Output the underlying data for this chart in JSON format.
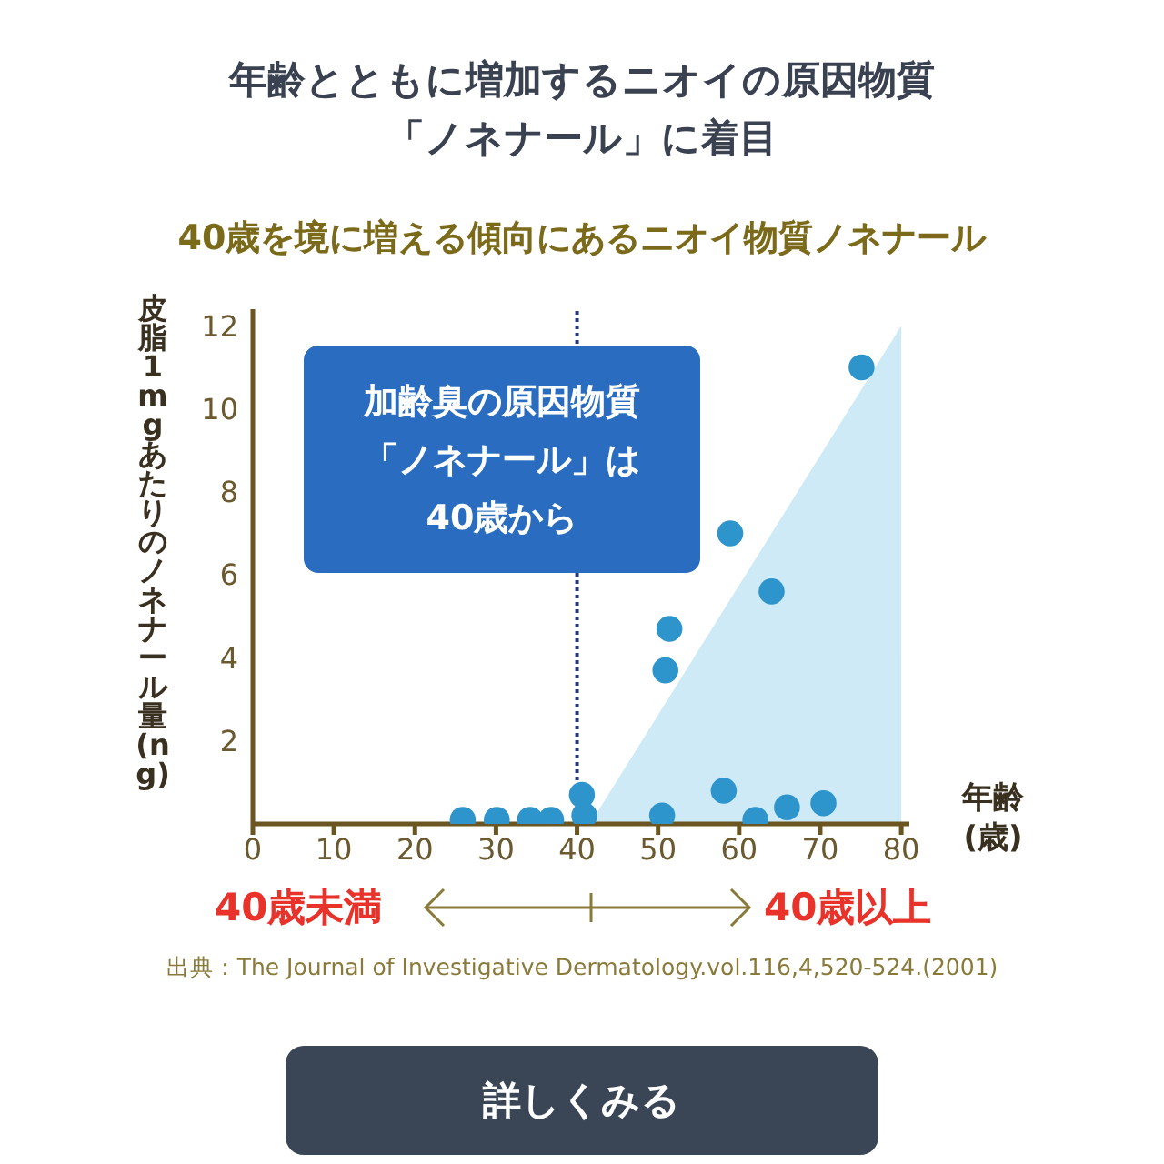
{
  "chart_data": {
    "type": "scatter",
    "title": "年齢とともに増加するニオイの原因物質「ノネナール」に着目",
    "subtitle": "40歳を境に増える傾向にあるニオイ物質ノネナール",
    "xlabel": "年齢(歳)",
    "ylabel": "皮脂1mgあたりのノネナール量(ng)",
    "xlim": [
      0,
      81
    ],
    "xticks": [
      0,
      10,
      20,
      30,
      40,
      50,
      60,
      70,
      80
    ],
    "ylim": [
      0,
      12.4
    ],
    "yticks": [
      2,
      4,
      6,
      8,
      10,
      12
    ],
    "grid": false,
    "legend": false,
    "marker": "circle",
    "ref_lines": [
      {
        "axis": "x",
        "value": 40,
        "color": "#2a3a7a",
        "line_style": "dotted"
      }
    ],
    "series": [
      {
        "type": "area",
        "marker": "none",
        "color": "#cdeaf6",
        "x": [
          41.6,
          80
        ],
        "values": [
          0,
          12
        ]
      },
      {
        "color": "#2e94cc",
        "x": [
          25.9,
          30.1,
          34.2,
          36.8,
          40.6,
          40.9,
          50.5,
          50.9,
          51.4,
          58.1,
          58.9,
          62.0,
          64.0,
          65.9,
          70.4,
          75.1
        ],
        "values": [
          0.1,
          0.1,
          0.1,
          0.1,
          0.7,
          0.2,
          0.2,
          3.7,
          4.7,
          0.8,
          7.0,
          0.1,
          5.6,
          0.4,
          0.5,
          11.0
        ]
      }
    ],
    "annotations": [
      "加齢臭の原因物質「ノネナール」は40歳から",
      "40歳未満",
      "40歳以上",
      "出典：The Journal of Investigative Dermatology.vol.116,4,520-524.(2001)",
      "詳しくみる"
    ]
  }
}
